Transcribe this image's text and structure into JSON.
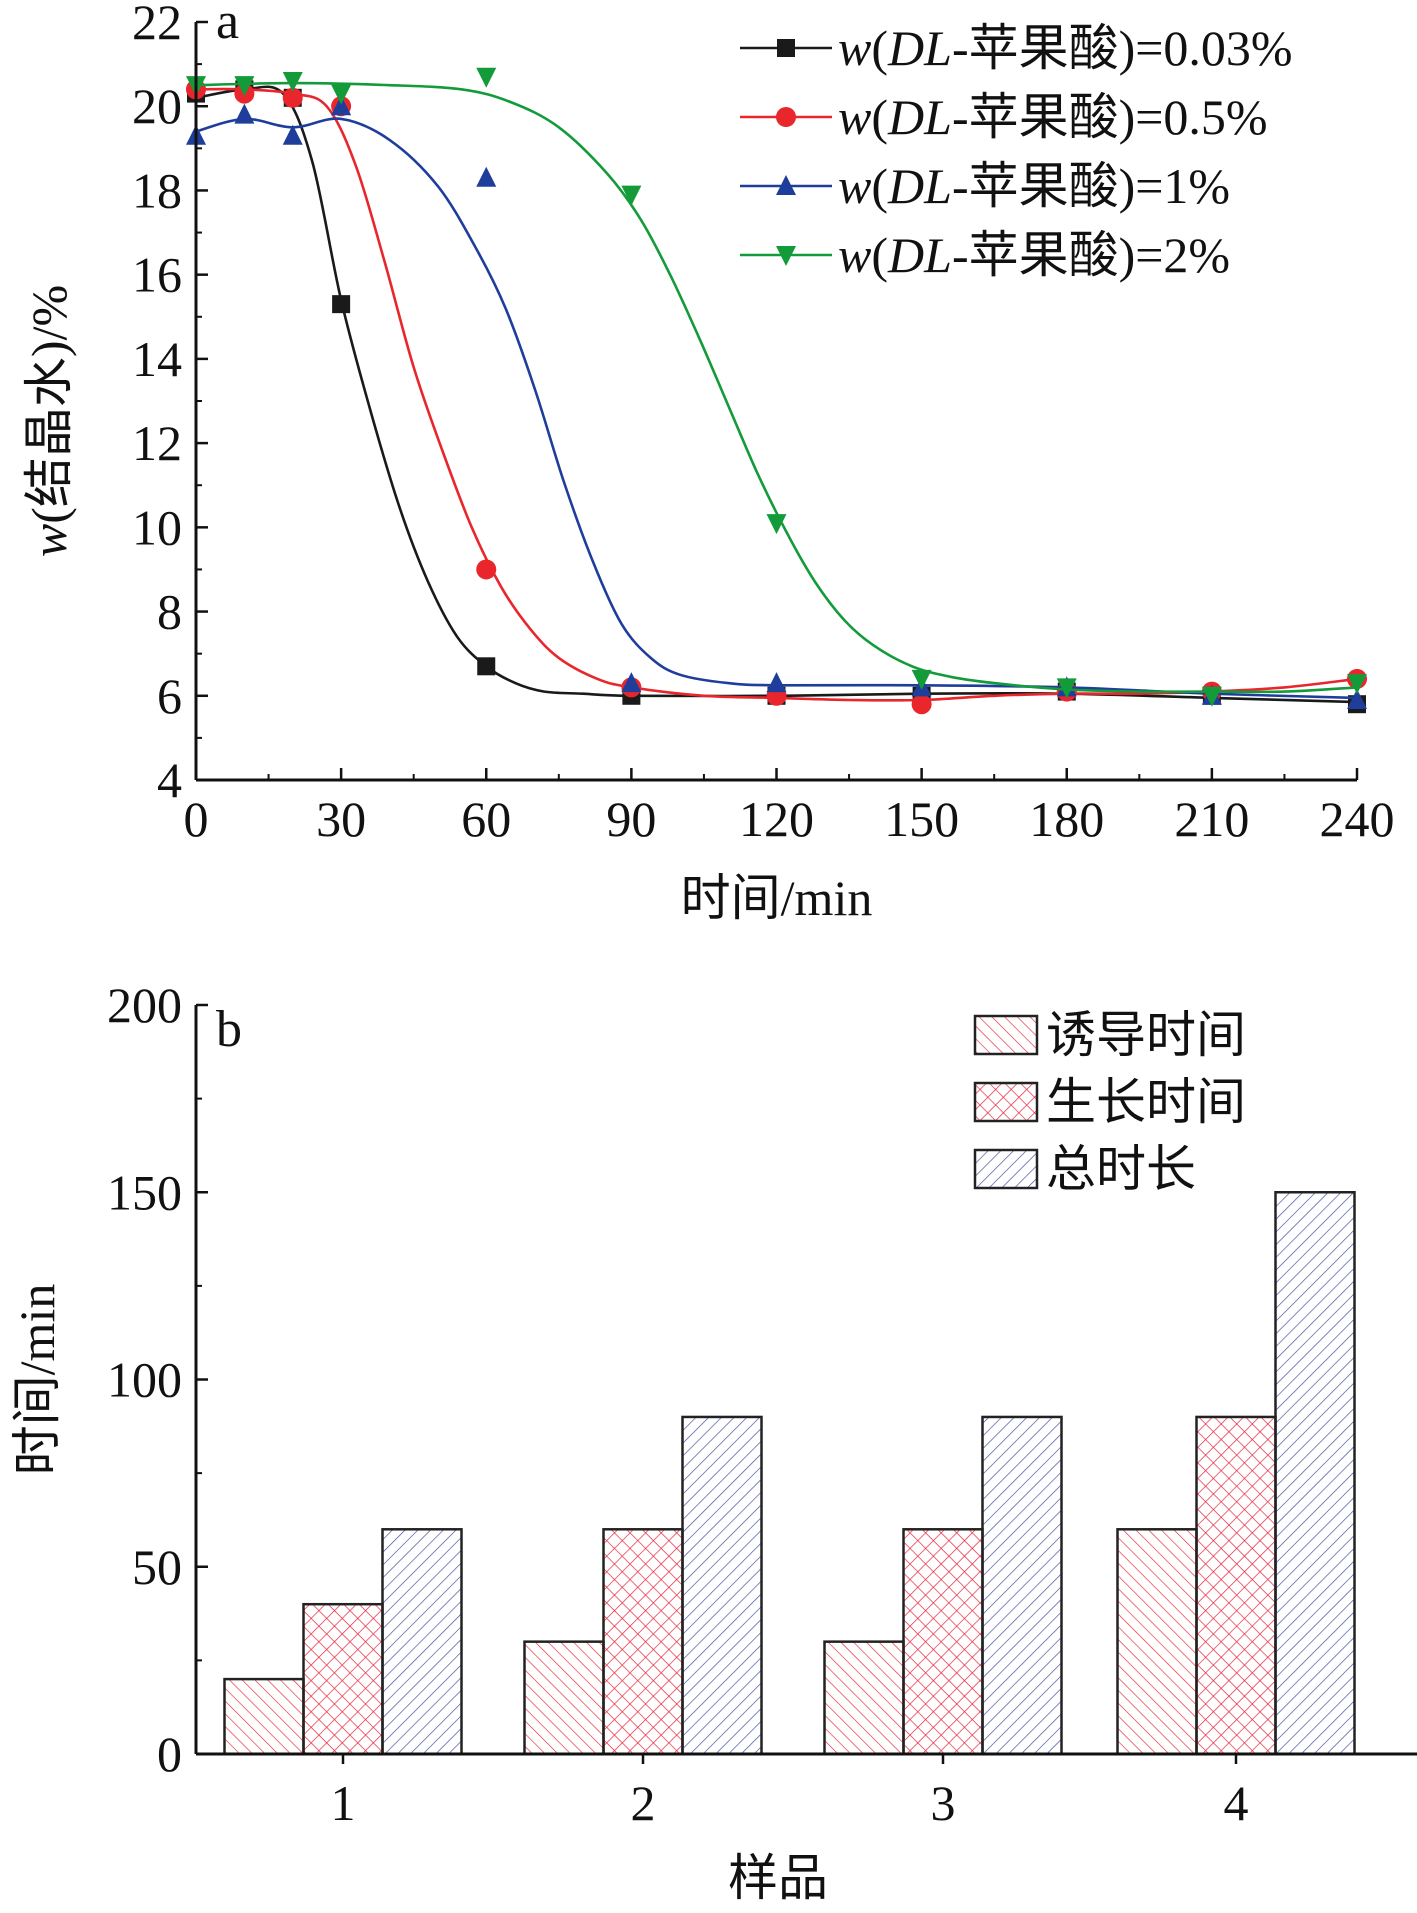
{
  "chart_data": [
    {
      "type": "line",
      "panel_label": "a",
      "xlabel": "时间/min",
      "ylabel_prefix": "w",
      "ylabel_rest": "(结晶水)/%",
      "xlim": [
        0,
        240
      ],
      "ylim": [
        4,
        22
      ],
      "xticks": [
        0,
        30,
        60,
        90,
        120,
        150,
        180,
        210,
        240
      ],
      "yticks": [
        4,
        6,
        8,
        10,
        12,
        14,
        16,
        18,
        20,
        22
      ],
      "grid": false,
      "legend_position": "top-right",
      "series": [
        {
          "name": "w(DL-苹果酸)=0.03%",
          "name_parts": [
            "w",
            "(",
            "DL",
            "-苹果酸)=0.03%"
          ],
          "color": "#1a1a1a",
          "marker": "square",
          "points": [
            [
              0,
              20.3
            ],
            [
              10,
              20.4
            ],
            [
              20,
              20.2
            ],
            [
              30,
              15.3
            ],
            [
              60,
              6.7
            ],
            [
              90,
              6.0
            ],
            [
              120,
              6.0
            ],
            [
              150,
              6.0
            ],
            [
              180,
              6.1
            ],
            [
              210,
              6.0
            ],
            [
              240,
              5.8
            ]
          ],
          "curve": [
            [
              0,
              20.2
            ],
            [
              10,
              20.4
            ],
            [
              18,
              20.3
            ],
            [
              24,
              18.7
            ],
            [
              30,
              15.4
            ],
            [
              36,
              12.8
            ],
            [
              42,
              10.5
            ],
            [
              48,
              8.7
            ],
            [
              54,
              7.4
            ],
            [
              60,
              6.7
            ],
            [
              66,
              6.3
            ],
            [
              72,
              6.1
            ],
            [
              80,
              6.05
            ],
            [
              90,
              6.0
            ],
            [
              120,
              6.0
            ],
            [
              150,
              6.05
            ],
            [
              180,
              6.05
            ],
            [
              210,
              5.95
            ],
            [
              240,
              5.85
            ]
          ]
        },
        {
          "name": "w(DL-苹果酸)=0.5%",
          "name_parts": [
            "w",
            "(",
            "DL",
            "-苹果酸)=0.5%"
          ],
          "color": "#e8262c",
          "marker": "circle",
          "points": [
            [
              0,
              20.4
            ],
            [
              10,
              20.3
            ],
            [
              20,
              20.2
            ],
            [
              30,
              20.0
            ],
            [
              60,
              9.0
            ],
            [
              90,
              6.2
            ],
            [
              120,
              6.0
            ],
            [
              150,
              5.8
            ],
            [
              180,
              6.1
            ],
            [
              210,
              6.1
            ],
            [
              240,
              6.4
            ]
          ],
          "curve": [
            [
              0,
              20.4
            ],
            [
              10,
              20.4
            ],
            [
              20,
              20.3
            ],
            [
              27,
              20.0
            ],
            [
              33,
              18.6
            ],
            [
              39,
              16.3
            ],
            [
              45,
              13.8
            ],
            [
              51,
              11.8
            ],
            [
              57,
              10.0
            ],
            [
              63,
              8.6
            ],
            [
              69,
              7.6
            ],
            [
              75,
              6.9
            ],
            [
              83,
              6.4
            ],
            [
              90,
              6.2
            ],
            [
              105,
              6.0
            ],
            [
              120,
              5.95
            ],
            [
              135,
              5.9
            ],
            [
              150,
              5.9
            ],
            [
              165,
              6.0
            ],
            [
              180,
              6.05
            ],
            [
              195,
              6.05
            ],
            [
              210,
              6.1
            ],
            [
              225,
              6.2
            ],
            [
              240,
              6.4
            ]
          ]
        },
        {
          "name": "w(DL-苹果酸)=1%",
          "name_parts": [
            "w",
            "(",
            "DL",
            "-苹果酸)=1%"
          ],
          "color": "#1f3e9c",
          "marker": "triangle-up",
          "points": [
            [
              0,
              19.3
            ],
            [
              10,
              19.8
            ],
            [
              20,
              19.3
            ],
            [
              30,
              20.0
            ],
            [
              60,
              18.3
            ],
            [
              90,
              6.3
            ],
            [
              120,
              6.3
            ],
            [
              150,
              6.2
            ],
            [
              180,
              6.2
            ],
            [
              210,
              6.0
            ],
            [
              240,
              5.9
            ]
          ],
          "curve": [
            [
              0,
              19.4
            ],
            [
              10,
              19.7
            ],
            [
              20,
              19.5
            ],
            [
              30,
              19.7
            ],
            [
              40,
              19.2
            ],
            [
              50,
              18.1
            ],
            [
              58,
              16.6
            ],
            [
              64,
              15.2
            ],
            [
              70,
              13.3
            ],
            [
              76,
              11.1
            ],
            [
              82,
              9.2
            ],
            [
              88,
              7.7
            ],
            [
              94,
              6.9
            ],
            [
              100,
              6.5
            ],
            [
              110,
              6.3
            ],
            [
              120,
              6.25
            ],
            [
              150,
              6.25
            ],
            [
              180,
              6.2
            ],
            [
              210,
              6.05
            ],
            [
              240,
              5.95
            ]
          ]
        },
        {
          "name": "w(DL-苹果酸)=2%",
          "name_parts": [
            "w",
            "(",
            "DL",
            "-苹果酸)=2%"
          ],
          "color": "#139b3a",
          "marker": "triangle-down",
          "points": [
            [
              0,
              20.5
            ],
            [
              10,
              20.5
            ],
            [
              20,
              20.6
            ],
            [
              30,
              20.3
            ],
            [
              60,
              20.7
            ],
            [
              90,
              17.9
            ],
            [
              120,
              10.1
            ],
            [
              150,
              6.4
            ],
            [
              180,
              6.2
            ],
            [
              210,
              6.0
            ],
            [
              240,
              6.3
            ]
          ],
          "curve": [
            [
              0,
              20.5
            ],
            [
              20,
              20.55
            ],
            [
              40,
              20.5
            ],
            [
              55,
              20.4
            ],
            [
              65,
              20.1
            ],
            [
              75,
              19.5
            ],
            [
              85,
              18.4
            ],
            [
              92,
              17.3
            ],
            [
              98,
              16.0
            ],
            [
              104,
              14.5
            ],
            [
              110,
              12.9
            ],
            [
              116,
              11.3
            ],
            [
              122,
              9.9
            ],
            [
              128,
              8.7
            ],
            [
              134,
              7.8
            ],
            [
              140,
              7.2
            ],
            [
              148,
              6.7
            ],
            [
              156,
              6.45
            ],
            [
              165,
              6.3
            ],
            [
              180,
              6.15
            ],
            [
              195,
              6.1
            ],
            [
              210,
              6.1
            ],
            [
              225,
              6.1
            ],
            [
              240,
              6.2
            ]
          ]
        }
      ]
    },
    {
      "type": "bar",
      "panel_label": "b",
      "xlabel": "样品",
      "ylabel": "时间/min",
      "ylim": [
        0,
        200
      ],
      "yticks": [
        0,
        50,
        100,
        150,
        200
      ],
      "categories": [
        "1",
        "2",
        "3",
        "4"
      ],
      "grid": false,
      "legend_position": "top-right",
      "series": [
        {
          "name": "诱导时间",
          "pattern": "diagonal-up",
          "color": "#e8263c",
          "values": [
            20,
            30,
            30,
            60
          ]
        },
        {
          "name": "生长时间",
          "pattern": "crosshatch",
          "color": "#e8263c",
          "values": [
            40,
            60,
            60,
            90
          ]
        },
        {
          "name": "总时长",
          "pattern": "diagonal-down",
          "color": "#3a4a9c",
          "values": [
            60,
            90,
            90,
            150
          ]
        }
      ]
    }
  ]
}
